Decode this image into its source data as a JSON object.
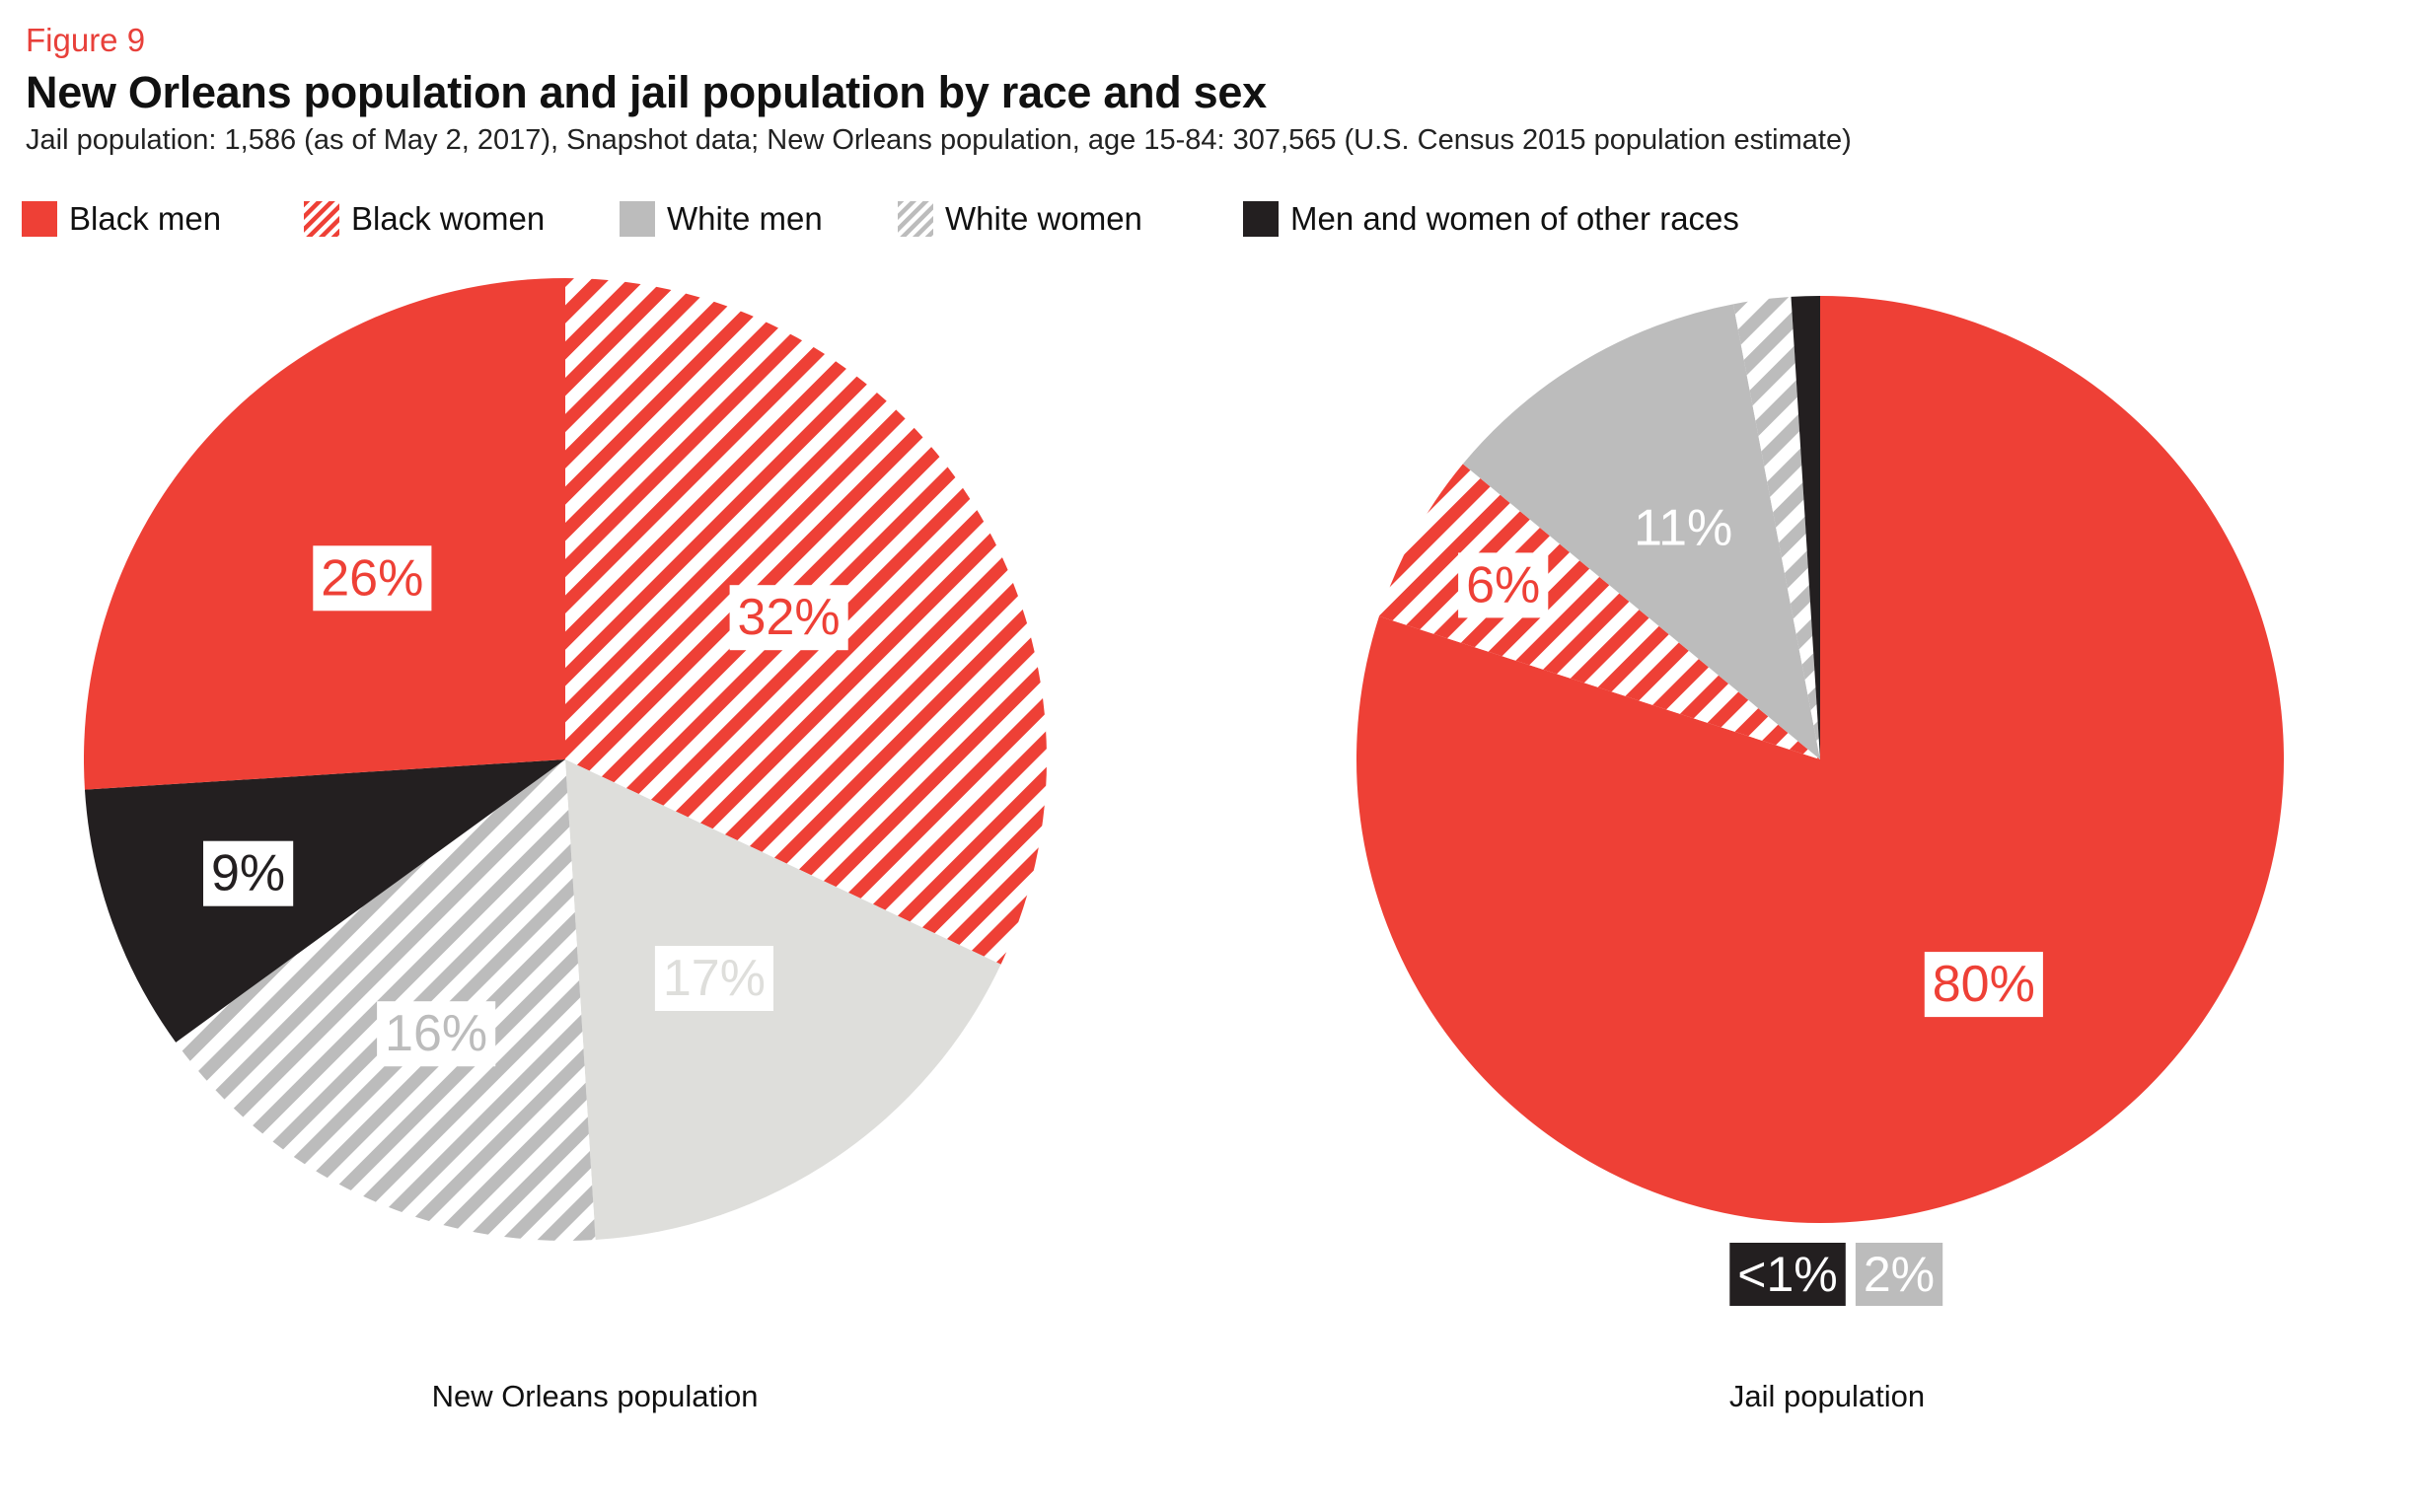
{
  "figure_label": "Figure 9",
  "title": "New Orleans population and jail population by race and sex",
  "subtitle": "Jail population: 1,586 (as of May 2, 2017), Snapshot data; New Orleans population, age 15-84: 307,565 (U.S. Census 2015 population estimate)",
  "colors": {
    "red": "#ee4036",
    "light_gray": "#dededb",
    "mid_gray": "#bcbcbc",
    "black": "#231f20",
    "white": "#ffffff"
  },
  "legend": [
    {
      "label": "Black men",
      "color": "#ee4036",
      "hatched": false
    },
    {
      "label": "Black women",
      "color": "#ee4036",
      "hatched": true
    },
    {
      "label": "White men",
      "color": "#bcbcbc",
      "hatched": false
    },
    {
      "label": "White women",
      "color": "#bcbcbc",
      "hatched": true
    },
    {
      "label": "Men and women of other races",
      "color": "#231f20",
      "hatched": false
    }
  ],
  "chart_data": [
    {
      "type": "pie",
      "caption": "New Orleans population",
      "start": "12 o'clock",
      "direction": "clockwise",
      "slices": [
        {
          "name": "Black women",
          "value": 32,
          "label": "32%"
        },
        {
          "name": "White men",
          "value": 17,
          "label": "17%"
        },
        {
          "name": "White women",
          "value": 16,
          "label": "16%"
        },
        {
          "name": "Men and women of other races",
          "value": 9,
          "label": "9%"
        },
        {
          "name": "Black men",
          "value": 26,
          "label": "26%"
        }
      ]
    },
    {
      "type": "pie",
      "caption": "Jail population",
      "start": "12 o'clock",
      "direction": "clockwise",
      "slices": [
        {
          "name": "Black men",
          "value": 80,
          "label": "80%"
        },
        {
          "name": "Black women",
          "value": 6,
          "label": "6%"
        },
        {
          "name": "White men",
          "value": 11,
          "label": "11%"
        },
        {
          "name": "White women",
          "value": 2,
          "label": "2%"
        },
        {
          "name": "Men and women of other races",
          "value": 1,
          "label": "<1%"
        }
      ]
    }
  ]
}
